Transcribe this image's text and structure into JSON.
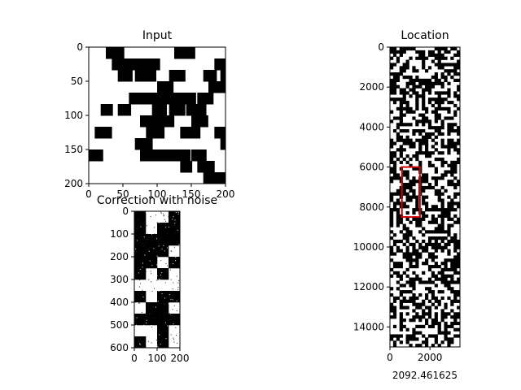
{
  "chart_data": [
    {
      "type": "heatmap",
      "id": "input",
      "title": "Input",
      "colormap": "binary black/white",
      "xlim": [
        0,
        200
      ],
      "ylim": [
        200,
        0
      ],
      "xticks": [
        "0",
        "50",
        "100",
        "150",
        "200"
      ],
      "yticks": [
        "0",
        "50",
        "100",
        "150",
        "200"
      ],
      "grid": false
    },
    {
      "type": "heatmap",
      "id": "location",
      "title": "Location",
      "colormap": "binary black/white",
      "xlim": [
        0,
        3500
      ],
      "ylim": [
        15000,
        0
      ],
      "xticks": [
        "0",
        "2000"
      ],
      "yticks": [
        "0",
        "2000",
        "4000",
        "6000",
        "8000",
        "10000",
        "12000",
        "14000"
      ],
      "grid": false,
      "highlight_box": {
        "x": [
          600,
          1500
        ],
        "y": [
          6000,
          8500
        ],
        "color": "#cc0000"
      },
      "footer": "2092.461625"
    },
    {
      "type": "heatmap",
      "id": "correction",
      "title": "Correction with noise",
      "colormap": "binary black/white with noise",
      "xlim": [
        0,
        200
      ],
      "ylim": [
        600,
        0
      ],
      "xticks": [
        "0",
        "100",
        "200"
      ],
      "yticks": [
        "0",
        "100",
        "200",
        "300",
        "400",
        "500",
        "600"
      ],
      "grid": false
    }
  ]
}
